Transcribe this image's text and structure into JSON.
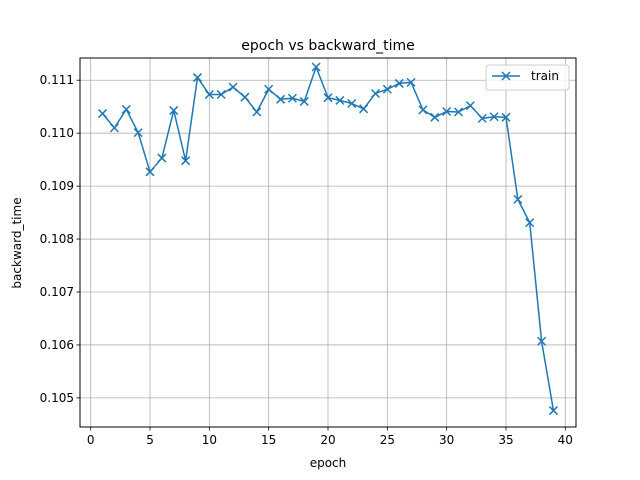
{
  "chart_data": {
    "type": "line",
    "title": "epoch vs backward_time",
    "xlabel": "epoch",
    "ylabel": "backward_time",
    "xlim": [
      -0.9,
      40.9
    ],
    "ylim": [
      0.10445,
      0.11142
    ],
    "xticks": [
      0,
      5,
      10,
      15,
      20,
      25,
      30,
      35,
      40
    ],
    "yticks": [
      0.105,
      0.106,
      0.107,
      0.108,
      0.109,
      0.11,
      0.111
    ],
    "ytick_labels": [
      "0.105",
      "0.106",
      "0.107",
      "0.108",
      "0.109",
      "0.110",
      "0.111"
    ],
    "grid": true,
    "legend_position": "top-right",
    "marker": "x",
    "series_color": "#1f77b4",
    "series": [
      {
        "name": "train",
        "x": [
          1,
          2,
          3,
          4,
          5,
          6,
          7,
          8,
          9,
          10,
          11,
          12,
          13,
          14,
          15,
          16,
          17,
          18,
          19,
          20,
          21,
          22,
          23,
          24,
          25,
          26,
          27,
          28,
          29,
          30,
          31,
          32,
          33,
          34,
          35,
          36,
          37,
          38,
          39
        ],
        "values": [
          0.11037,
          0.1101,
          0.11045,
          0.11001,
          0.10927,
          0.10953,
          0.11043,
          0.10948,
          0.11105,
          0.11073,
          0.11073,
          0.11087,
          0.11068,
          0.1104,
          0.11083,
          0.11064,
          0.11066,
          0.1106,
          0.11125,
          0.11067,
          0.11062,
          0.11056,
          0.11046,
          0.11075,
          0.11083,
          0.11094,
          0.11096,
          0.11044,
          0.1103,
          0.11041,
          0.1104,
          0.11052,
          0.11028,
          0.11031,
          0.1103,
          0.10875,
          0.10831,
          0.10607,
          0.10476
        ]
      }
    ]
  }
}
